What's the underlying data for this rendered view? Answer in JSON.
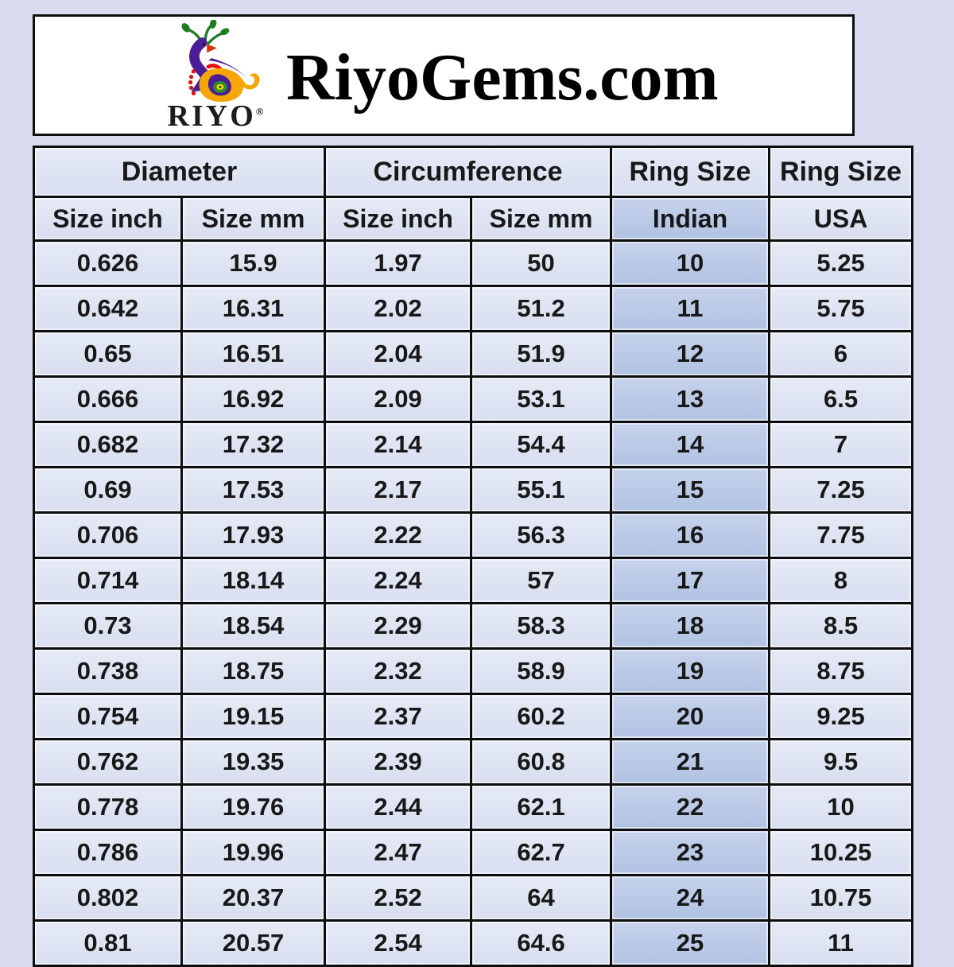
{
  "header": {
    "title": "RiyoGems.com",
    "logo": {
      "brand": "RIYO",
      "registered_mark": "®"
    }
  },
  "table": {
    "column_groups": {
      "diameter": "Diameter",
      "circumference": "Circumference",
      "ring_size_indian": "Ring Size",
      "ring_size_usa": "Ring Size"
    },
    "subheaders": {
      "diameter_inch": "Size inch",
      "diameter_mm": "Size mm",
      "circumference_inch": "Size inch",
      "circumference_mm": "Size mm",
      "indian": "Indian",
      "usa": "USA"
    },
    "rows": [
      [
        "0.626",
        "15.9",
        "1.97",
        "50",
        "10",
        "5.25"
      ],
      [
        "0.642",
        "16.31",
        "2.02",
        "51.2",
        "11",
        "5.75"
      ],
      [
        "0.65",
        "16.51",
        "2.04",
        "51.9",
        "12",
        "6"
      ],
      [
        "0.666",
        "16.92",
        "2.09",
        "53.1",
        "13",
        "6.5"
      ],
      [
        "0.682",
        "17.32",
        "2.14",
        "54.4",
        "14",
        "7"
      ],
      [
        "0.69",
        "17.53",
        "2.17",
        "55.1",
        "15",
        "7.25"
      ],
      [
        "0.706",
        "17.93",
        "2.22",
        "56.3",
        "16",
        "7.75"
      ],
      [
        "0.714",
        "18.14",
        "2.24",
        "57",
        "17",
        "8"
      ],
      [
        "0.73",
        "18.54",
        "2.29",
        "58.3",
        "18",
        "8.5"
      ],
      [
        "0.738",
        "18.75",
        "2.32",
        "58.9",
        "19",
        "8.75"
      ],
      [
        "0.754",
        "19.15",
        "2.37",
        "60.2",
        "20",
        "9.25"
      ],
      [
        "0.762",
        "19.35",
        "2.39",
        "60.8",
        "21",
        "9.5"
      ],
      [
        "0.778",
        "19.76",
        "2.44",
        "62.1",
        "22",
        "10"
      ],
      [
        "0.786",
        "19.96",
        "2.47",
        "62.7",
        "23",
        "10.25"
      ],
      [
        "0.802",
        "20.37",
        "2.52",
        "64",
        "24",
        "10.75"
      ],
      [
        "0.81",
        "20.57",
        "2.54",
        "64.6",
        "25",
        "11"
      ]
    ]
  },
  "colors": {
    "page_bg": "#d8dcee",
    "header_box_bg": "#ffffff",
    "cell_bg": "#dce3f1",
    "indian_column_bg": "#b8c7e5",
    "grid_border": "#0d0d0d",
    "logo_green": "#1c7d21",
    "logo_purple": "#4a1d96",
    "logo_orange": "#f6a608",
    "logo_red": "#e01010"
  }
}
